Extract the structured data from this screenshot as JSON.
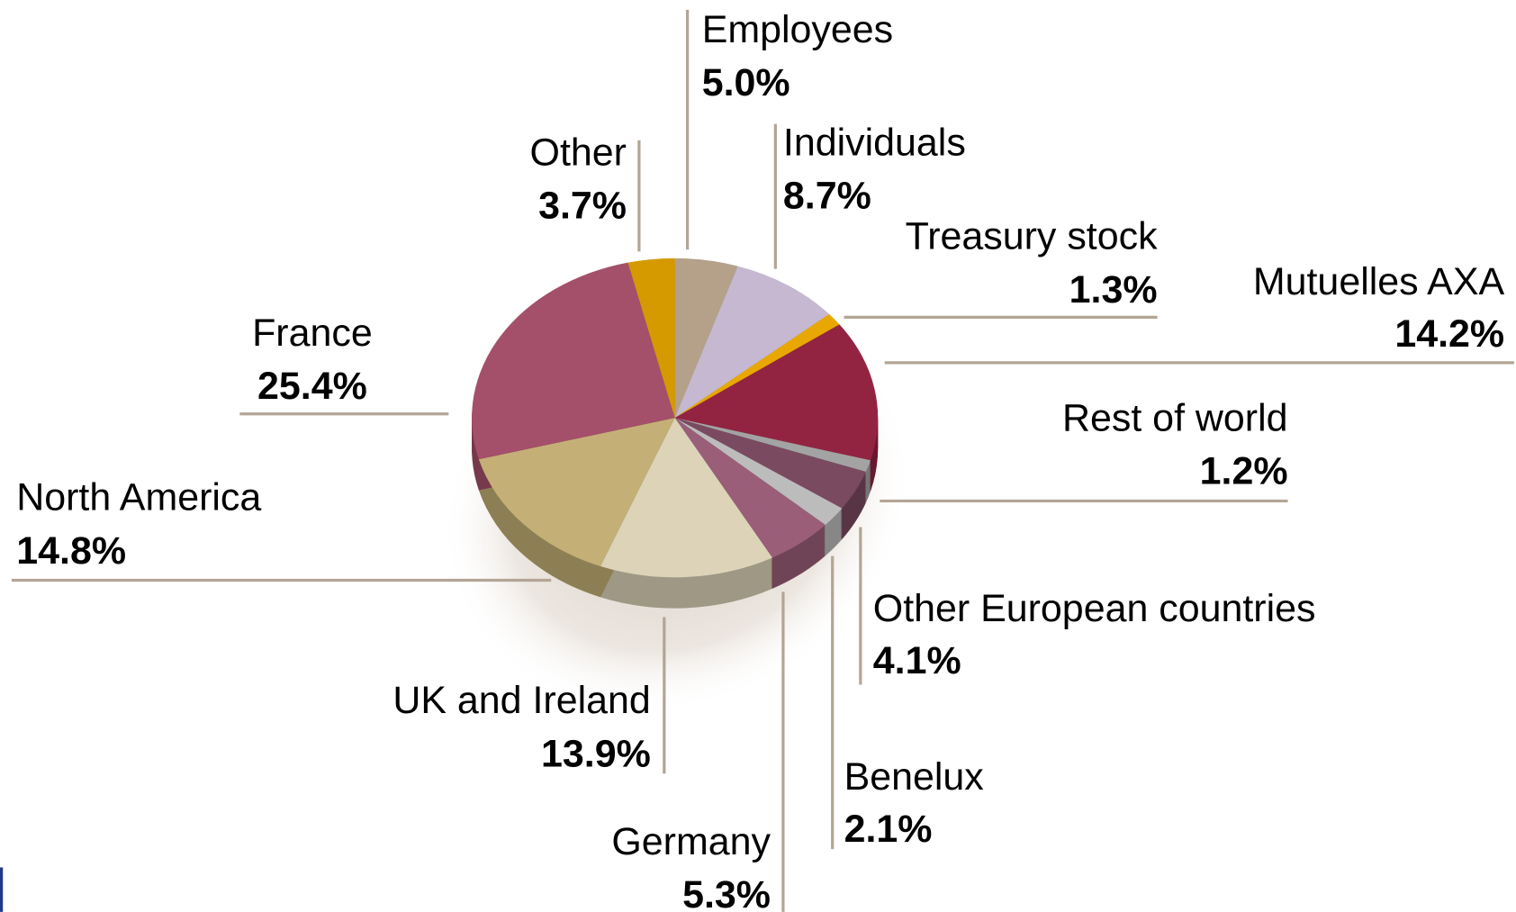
{
  "chart_data": {
    "type": "pie",
    "categories": [
      "Employees",
      "Individuals",
      "Treasury stock",
      "Mutuelles AXA",
      "Rest of world",
      "Other European countries",
      "Benelux",
      "Germany",
      "UK and Ireland",
      "North America",
      "France",
      "Other"
    ],
    "values": [
      5.0,
      8.7,
      1.3,
      14.2,
      1.2,
      4.1,
      2.1,
      5.3,
      13.9,
      14.8,
      25.4,
      3.7
    ],
    "value_labels": [
      "5.0%",
      "8.7%",
      "1.3%",
      "14.2%",
      "1.2%",
      "4.1%",
      "2.1%",
      "5.3%",
      "13.9%",
      "14.8%",
      "25.4%",
      "3.7%"
    ],
    "colors": [
      "#b5a08a",
      "#c5b8d0",
      "#e8a800",
      "#922442",
      "#a3a3a3",
      "#7a4a60",
      "#bcbcbc",
      "#9a5e78",
      "#dcd3b8",
      "#c4b076",
      "#a4506a",
      "#d49a00"
    ]
  }
}
